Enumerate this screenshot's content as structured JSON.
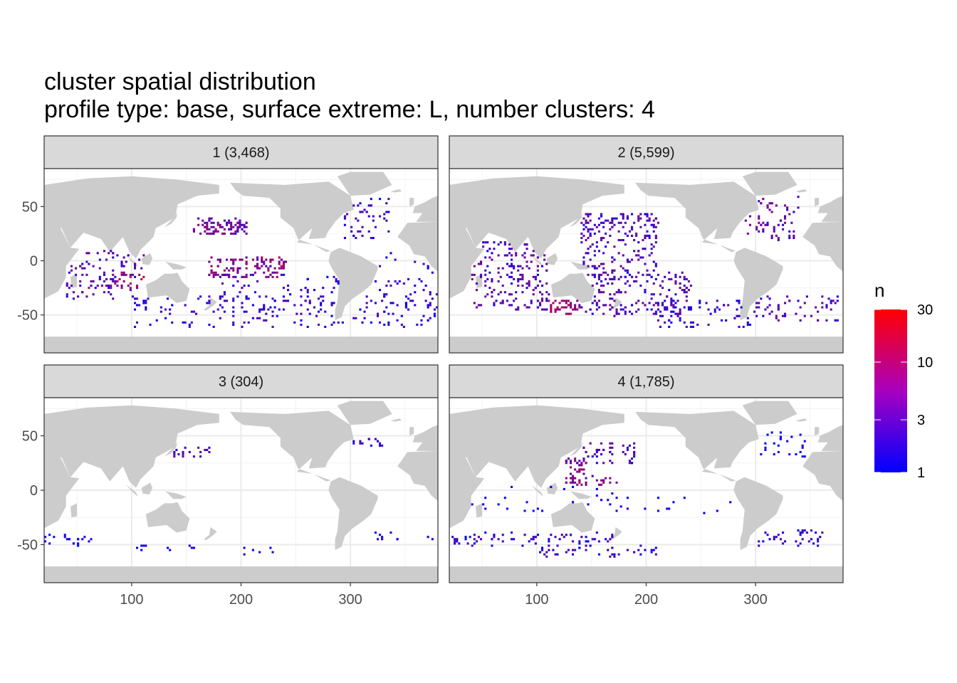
{
  "title": "cluster spatial distribution",
  "subtitle": "profile type: base, surface extreme: L, number clusters: 4",
  "chart_data": {
    "type": "heatmap",
    "x_ticks": [
      100,
      200,
      300
    ],
    "y_ticks": [
      50,
      0,
      -50
    ],
    "y_tick_labels": [
      "50",
      "0",
      "-50"
    ],
    "xlim": [
      20,
      380
    ],
    "ylim": [
      -85,
      85
    ],
    "grid": true,
    "legend": {
      "title": "n",
      "scale": "log",
      "range": [
        1,
        30
      ],
      "tick_values": [
        30,
        10,
        3,
        1
      ],
      "tick_labels": [
        "30",
        "10",
        "3",
        "1"
      ],
      "colors": [
        "#0000ff",
        "#ff0000"
      ],
      "placement": "right"
    },
    "panels": [
      {
        "label": "1 (3,468)",
        "clusters": [
          {
            "lon": [
              155,
              205
            ],
            "lat": [
              25,
              40
            ],
            "count": 80,
            "n": 4
          },
          {
            "lon": [
              170,
              240
            ],
            "lat": [
              -15,
              5
            ],
            "count": 110,
            "n": 6
          },
          {
            "lon": [
              40,
              110
            ],
            "lat": [
              -35,
              10
            ],
            "count": 90,
            "n": 3
          },
          {
            "lon": [
              60,
              110
            ],
            "lat": [
              -25,
              -10
            ],
            "count": 25,
            "n": 8
          },
          {
            "lon": [
              290,
              335
            ],
            "lat": [
              20,
              60
            ],
            "count": 45,
            "n": 2
          },
          {
            "lon": [
              100,
              380
            ],
            "lat": [
              -60,
              -30
            ],
            "count": 170,
            "n": 2
          },
          {
            "lon": [
              180,
              290
            ],
            "lat": [
              -45,
              -10
            ],
            "count": 70,
            "n": 2
          },
          {
            "lon": [
              320,
              380
            ],
            "lat": [
              -45,
              10
            ],
            "count": 35,
            "n": 2
          }
        ]
      },
      {
        "label": "2 (5,599)",
        "clusters": [
          {
            "lon": [
              140,
              210
            ],
            "lat": [
              20,
              45
            ],
            "count": 120,
            "n": 3
          },
          {
            "lon": [
              40,
              110
            ],
            "lat": [
              -45,
              20
            ],
            "count": 180,
            "n": 3
          },
          {
            "lon": [
              110,
              140
            ],
            "lat": [
              -48,
              -35
            ],
            "count": 40,
            "n": 8
          },
          {
            "lon": [
              140,
              240
            ],
            "lat": [
              -50,
              -10
            ],
            "count": 180,
            "n": 3
          },
          {
            "lon": [
              140,
              210
            ],
            "lat": [
              -15,
              20
            ],
            "count": 80,
            "n": 3
          },
          {
            "lon": [
              210,
              300
            ],
            "lat": [
              -60,
              -35
            ],
            "count": 70,
            "n": 2
          },
          {
            "lon": [
              300,
              380
            ],
            "lat": [
              -55,
              -30
            ],
            "count": 60,
            "n": 3
          },
          {
            "lon": [
              290,
              340
            ],
            "lat": [
              20,
              60
            ],
            "count": 60,
            "n": 4
          }
        ]
      },
      {
        "label": "3 (304)",
        "clusters": [
          {
            "lon": [
              135,
              170
            ],
            "lat": [
              32,
              40
            ],
            "count": 18,
            "n": 3
          },
          {
            "lon": [
              300,
              330
            ],
            "lat": [
              40,
              48
            ],
            "count": 14,
            "n": 2
          },
          {
            "lon": [
              20,
              70
            ],
            "lat": [
              -50,
              -40
            ],
            "count": 20,
            "n": 1
          },
          {
            "lon": [
              100,
              160
            ],
            "lat": [
              -55,
              -48
            ],
            "count": 10,
            "n": 1
          },
          {
            "lon": [
              200,
              240
            ],
            "lat": [
              -60,
              -50
            ],
            "count": 6,
            "n": 1
          },
          {
            "lon": [
              320,
              345
            ],
            "lat": [
              -45,
              -38
            ],
            "count": 8,
            "n": 1
          },
          {
            "lon": [
              370,
              380
            ],
            "lat": [
              -45,
              -40
            ],
            "count": 3,
            "n": 1
          }
        ]
      },
      {
        "label": "4 (1,785)",
        "clusters": [
          {
            "lon": [
              125,
              145
            ],
            "lat": [
              10,
              30
            ],
            "count": 40,
            "n": 6
          },
          {
            "lon": [
              140,
              190
            ],
            "lat": [
              25,
              45
            ],
            "count": 45,
            "n": 3
          },
          {
            "lon": [
              125,
              175
            ],
            "lat": [
              5,
              15
            ],
            "count": 25,
            "n": 5
          },
          {
            "lon": [
              20,
              170
            ],
            "lat": [
              -50,
              -38
            ],
            "count": 70,
            "n": 2
          },
          {
            "lon": [
              100,
              210
            ],
            "lat": [
              -60,
              -50
            ],
            "count": 40,
            "n": 2
          },
          {
            "lon": [
              300,
              360
            ],
            "lat": [
              -50,
              -35
            ],
            "count": 35,
            "n": 2
          },
          {
            "lon": [
              40,
              300
            ],
            "lat": [
              -20,
              5
            ],
            "count": 40,
            "n": 1
          },
          {
            "lon": [
              290,
              345
            ],
            "lat": [
              30,
              55
            ],
            "count": 25,
            "n": 1
          }
        ]
      }
    ]
  }
}
